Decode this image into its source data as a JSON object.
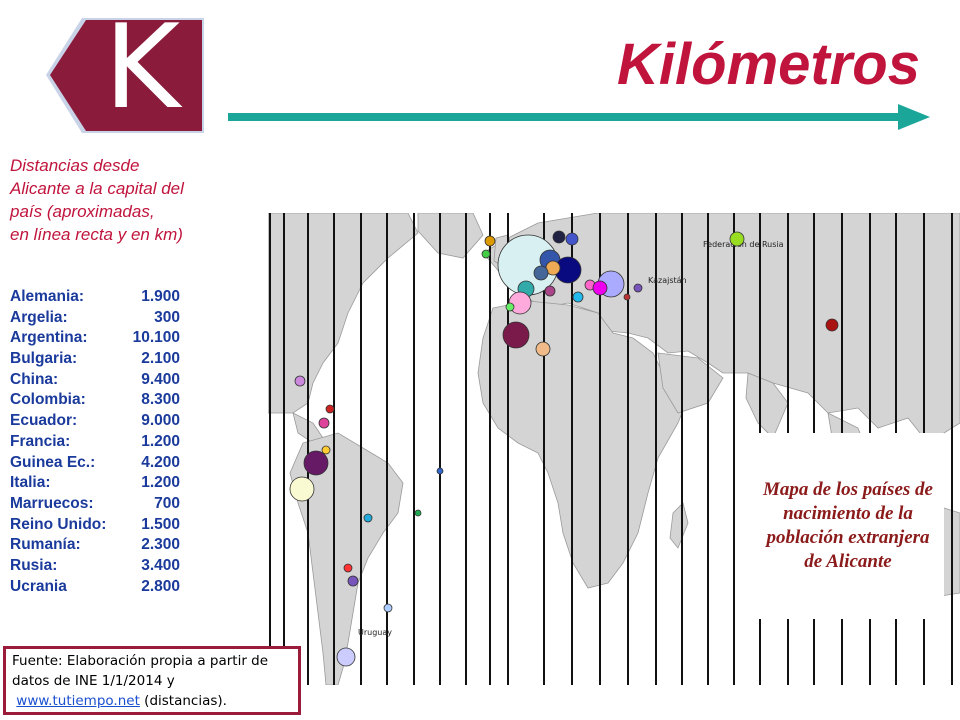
{
  "header": {
    "badge_letter": "K",
    "title": "Kilómetros"
  },
  "subtitle_lines": [
    "Distancias desde",
    "Alicante a la capital del",
    "país (aproximadas,",
    "en línea recta y en km)"
  ],
  "distances": [
    {
      "country": "Alemania:",
      "km": "1.900"
    },
    {
      "country": "Argelia:",
      "km": "300"
    },
    {
      "country": "Argentina:",
      "km": "10.100"
    },
    {
      "country": "Bulgaria:",
      "km": "2.100"
    },
    {
      "country": "China:",
      "km": "9.400"
    },
    {
      "country": "Colombia:",
      "km": "8.300"
    },
    {
      "country": "Ecuador:",
      "km": "9.000"
    },
    {
      "country": "Francia:",
      "km": "1.200"
    },
    {
      "country": "Guinea Ec.:",
      "km": "4.200"
    },
    {
      "country": "Italia:",
      "km": "1.200"
    },
    {
      "country": "Marruecos:",
      "km": "700"
    },
    {
      "country": "Reino Unido:",
      "km": "1.500"
    },
    {
      "country": "Rumanía:",
      "km": "2.300"
    },
    {
      "country": "Rusia:",
      "km": "3.400"
    },
    {
      "country": "Ucrania",
      "km": "2.800"
    }
  ],
  "map": {
    "callout": "Mapa de los países de nacimiento de la población extranjera de Alicante",
    "labels": [
      "Federación de Rusia",
      "Kazajstán",
      "Uruguay"
    ]
  },
  "source": {
    "line1": "Fuente: Elaboración propia a partir de",
    "line2": "datos de INE 1/1/2014 y",
    "link": "www.tutiempo.net",
    "tail": "(distancias)."
  },
  "colors": {
    "accent_red": "#c0143c",
    "list_blue": "#1a3a9c",
    "arrow_teal": "#1aa79a",
    "callout_text": "#8b1a1a",
    "source_border": "#9b1b3a"
  }
}
